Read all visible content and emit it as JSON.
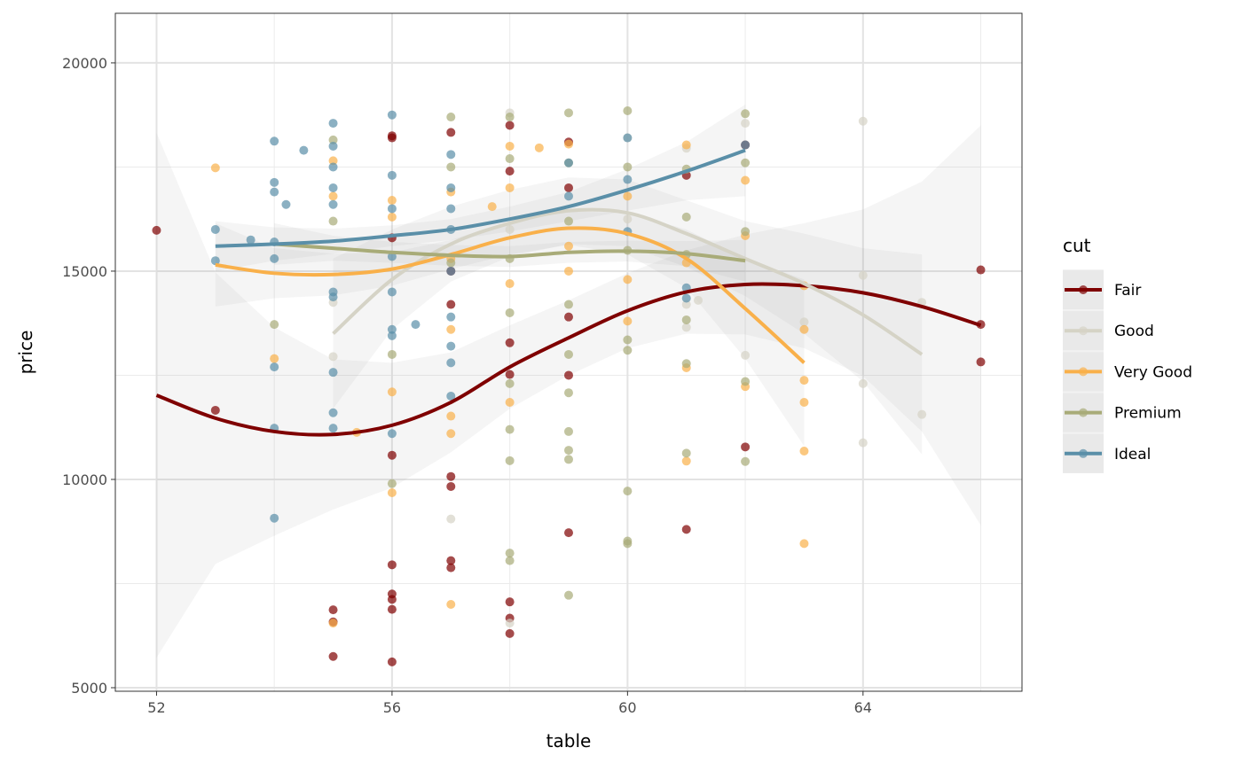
{
  "chart_data": {
    "type": "scatter",
    "title": "",
    "xlabel": "table",
    "ylabel": "price",
    "xlim": [
      51.3,
      66.7
    ],
    "ylim": [
      4915,
      21190
    ],
    "xticks": [
      52,
      56,
      60,
      64
    ],
    "yticks": [
      5000,
      10000,
      15000,
      20000
    ],
    "xminor": [
      54,
      58,
      62,
      66
    ],
    "yminor": [
      7500,
      12500,
      17500
    ],
    "grid": true,
    "legend": {
      "title": "cut",
      "placement": "right"
    },
    "series": [
      {
        "name": "Fair",
        "color": "#7f0000",
        "points": [
          [
            52,
            15980
          ],
          [
            53,
            11660
          ],
          [
            55,
            6870
          ],
          [
            55,
            6580
          ],
          [
            55,
            5750
          ],
          [
            56,
            18250
          ],
          [
            56,
            18200
          ],
          [
            56,
            15800
          ],
          [
            56,
            10580
          ],
          [
            56,
            7950
          ],
          [
            56,
            7250
          ],
          [
            56,
            7120
          ],
          [
            56,
            6880
          ],
          [
            56,
            5620
          ],
          [
            57,
            18330
          ],
          [
            57,
            15000
          ],
          [
            57,
            14200
          ],
          [
            57,
            10070
          ],
          [
            57,
            9830
          ],
          [
            57,
            8050
          ],
          [
            57,
            7880
          ],
          [
            58,
            18500
          ],
          [
            58,
            17400
          ],
          [
            58,
            13280
          ],
          [
            58,
            12520
          ],
          [
            58,
            7060
          ],
          [
            58,
            6670
          ],
          [
            58,
            6300
          ],
          [
            59,
            18100
          ],
          [
            59,
            17000
          ],
          [
            59,
            13900
          ],
          [
            59,
            12500
          ],
          [
            59,
            8720
          ],
          [
            61,
            17300
          ],
          [
            61,
            8800
          ],
          [
            62,
            18030
          ],
          [
            62,
            10780
          ],
          [
            66,
            15030
          ],
          [
            66,
            13720
          ],
          [
            66,
            12820
          ]
        ],
        "smooth_x": [
          52,
          53,
          54,
          55,
          56,
          57,
          58,
          59,
          60,
          61,
          62,
          63,
          64,
          65,
          66
        ],
        "smooth_y": [
          12020,
          11470,
          11150,
          11080,
          11300,
          11850,
          12700,
          13400,
          14050,
          14500,
          14680,
          14650,
          14480,
          14150,
          13700
        ],
        "ci": [
          6300,
          3500,
          2500,
          1800,
          1500,
          1200,
          1000,
          900,
          900,
          1000,
          1200,
          1500,
          2000,
          3000,
          4800
        ]
      },
      {
        "name": "Good",
        "color": "#d5d3c6",
        "points": [
          [
            55,
            14250
          ],
          [
            55,
            12950
          ],
          [
            57,
            9050
          ],
          [
            58,
            18800
          ],
          [
            58,
            16000
          ],
          [
            58,
            6550
          ],
          [
            60,
            18200
          ],
          [
            60,
            16250
          ],
          [
            61,
            17950
          ],
          [
            61,
            14200
          ],
          [
            61,
            13650
          ],
          [
            61.2,
            14300
          ],
          [
            62,
            18550
          ],
          [
            62,
            12980
          ],
          [
            63,
            13780
          ],
          [
            64,
            18600
          ],
          [
            64,
            14900
          ],
          [
            64,
            12300
          ],
          [
            64,
            10880
          ],
          [
            65,
            14250
          ],
          [
            65,
            11560
          ]
        ],
        "smooth_x": [
          55,
          56,
          57,
          58,
          59,
          60,
          61,
          62,
          63,
          64,
          65
        ],
        "smooth_y": [
          13500,
          14800,
          15650,
          16150,
          16450,
          16400,
          15900,
          15300,
          14700,
          13950,
          13000
        ],
        "ci": [
          1800,
          1200,
          900,
          800,
          800,
          800,
          800,
          900,
          1200,
          1600,
          2400
        ]
      },
      {
        "name": "Very Good",
        "color": "#f9b04a",
        "points": [
          [
            53,
            17480
          ],
          [
            54,
            12900
          ],
          [
            55,
            17650
          ],
          [
            55,
            16800
          ],
          [
            55,
            6550
          ],
          [
            55.4,
            11130
          ],
          [
            56,
            16700
          ],
          [
            56,
            16300
          ],
          [
            56,
            12100
          ],
          [
            56,
            9680
          ],
          [
            57,
            16900
          ],
          [
            57,
            15300
          ],
          [
            57,
            13600
          ],
          [
            57,
            11520
          ],
          [
            57,
            11100
          ],
          [
            57,
            7000
          ],
          [
            57.7,
            16550
          ],
          [
            58,
            18000
          ],
          [
            58,
            17000
          ],
          [
            58,
            14700
          ],
          [
            58,
            11850
          ],
          [
            58.5,
            17960
          ],
          [
            59,
            18050
          ],
          [
            59,
            15600
          ],
          [
            59,
            15000
          ],
          [
            60,
            16800
          ],
          [
            60,
            14800
          ],
          [
            60,
            13800
          ],
          [
            61,
            18030
          ],
          [
            61,
            15200
          ],
          [
            61,
            12680
          ],
          [
            61,
            10440
          ],
          [
            62,
            17180
          ],
          [
            62,
            15850
          ],
          [
            62,
            12230
          ],
          [
            63,
            14650
          ],
          [
            63,
            13600
          ],
          [
            63,
            12380
          ],
          [
            63,
            11850
          ],
          [
            63,
            10680
          ],
          [
            63,
            8460
          ]
        ],
        "smooth_x": [
          53,
          54,
          55,
          56,
          57,
          58,
          59,
          60,
          61,
          62,
          63
        ],
        "smooth_y": [
          15150,
          14950,
          14920,
          15050,
          15400,
          15800,
          16030,
          15900,
          15300,
          14100,
          12800
        ],
        "ci": [
          1000,
          600,
          500,
          400,
          350,
          400,
          400,
          500,
          700,
          1200,
          2000
        ]
      },
      {
        "name": "Premium",
        "color": "#a8ab78",
        "points": [
          [
            54,
            13720
          ],
          [
            55,
            18150
          ],
          [
            55,
            16200
          ],
          [
            56,
            13000
          ],
          [
            56,
            9900
          ],
          [
            57,
            18700
          ],
          [
            57,
            17500
          ],
          [
            57,
            15200
          ],
          [
            58,
            18700
          ],
          [
            58,
            17700
          ],
          [
            58,
            15300
          ],
          [
            58,
            14000
          ],
          [
            58,
            12300
          ],
          [
            58,
            11200
          ],
          [
            58,
            10450
          ],
          [
            58,
            8230
          ],
          [
            58,
            8050
          ],
          [
            59,
            18800
          ],
          [
            59,
            17600
          ],
          [
            59,
            16200
          ],
          [
            59,
            14200
          ],
          [
            59,
            13000
          ],
          [
            59,
            12080
          ],
          [
            59,
            11150
          ],
          [
            59,
            10700
          ],
          [
            59,
            10480
          ],
          [
            59,
            7220
          ],
          [
            60,
            18850
          ],
          [
            60,
            17500
          ],
          [
            60,
            15500
          ],
          [
            60,
            13350
          ],
          [
            60,
            13100
          ],
          [
            60,
            9720
          ],
          [
            60,
            8520
          ],
          [
            60,
            8460
          ],
          [
            61,
            17450
          ],
          [
            61,
            16300
          ],
          [
            61,
            15400
          ],
          [
            61,
            13830
          ],
          [
            61,
            12780
          ],
          [
            61,
            10630
          ],
          [
            62,
            18780
          ],
          [
            62,
            17600
          ],
          [
            62,
            15950
          ],
          [
            62,
            12350
          ],
          [
            62,
            10430
          ]
        ],
        "smooth_x": [
          54,
          55,
          56,
          57,
          58,
          59,
          60,
          61,
          62
        ],
        "smooth_y": [
          15650,
          15550,
          15450,
          15380,
          15350,
          15450,
          15480,
          15420,
          15250
        ],
        "ci": [
          500,
          300,
          250,
          250,
          250,
          250,
          250,
          300,
          500
        ]
      },
      {
        "name": "Ideal",
        "color": "#5a8fa8",
        "points": [
          [
            53,
            16000
          ],
          [
            53,
            15250
          ],
          [
            53.6,
            15750
          ],
          [
            54,
            18120
          ],
          [
            54,
            17130
          ],
          [
            54,
            16900
          ],
          [
            54,
            15700
          ],
          [
            54,
            15300
          ],
          [
            54,
            12700
          ],
          [
            54,
            11230
          ],
          [
            54,
            9070
          ],
          [
            54.2,
            16600
          ],
          [
            54.5,
            17900
          ],
          [
            55,
            18550
          ],
          [
            55,
            18000
          ],
          [
            55,
            17500
          ],
          [
            55,
            17000
          ],
          [
            55,
            16600
          ],
          [
            55,
            14500
          ],
          [
            55,
            14380
          ],
          [
            55,
            12570
          ],
          [
            55,
            11600
          ],
          [
            55,
            11230
          ],
          [
            56,
            18750
          ],
          [
            56,
            17300
          ],
          [
            56,
            16500
          ],
          [
            56,
            15350
          ],
          [
            56,
            14500
          ],
          [
            56,
            13600
          ],
          [
            56,
            13450
          ],
          [
            56,
            11100
          ],
          [
            56.4,
            13720
          ],
          [
            57,
            17800
          ],
          [
            57,
            17000
          ],
          [
            57,
            16500
          ],
          [
            57,
            16000
          ],
          [
            57,
            15000
          ],
          [
            57,
            13900
          ],
          [
            57,
            13200
          ],
          [
            57,
            12800
          ],
          [
            57,
            12000
          ],
          [
            59,
            17600
          ],
          [
            59,
            16800
          ],
          [
            60,
            18200
          ],
          [
            60,
            17200
          ],
          [
            60,
            15950
          ],
          [
            61,
            14350
          ],
          [
            61,
            14600
          ],
          [
            62,
            18030
          ]
        ],
        "smooth_x": [
          53,
          54,
          55,
          56,
          57,
          58,
          59,
          60,
          61,
          62
        ],
        "smooth_y": [
          15600,
          15650,
          15720,
          15850,
          16000,
          16250,
          16550,
          16950,
          17400,
          17900
        ],
        "ci": [
          600,
          400,
          300,
          250,
          250,
          300,
          350,
          500,
          700,
          1100
        ]
      }
    ]
  }
}
